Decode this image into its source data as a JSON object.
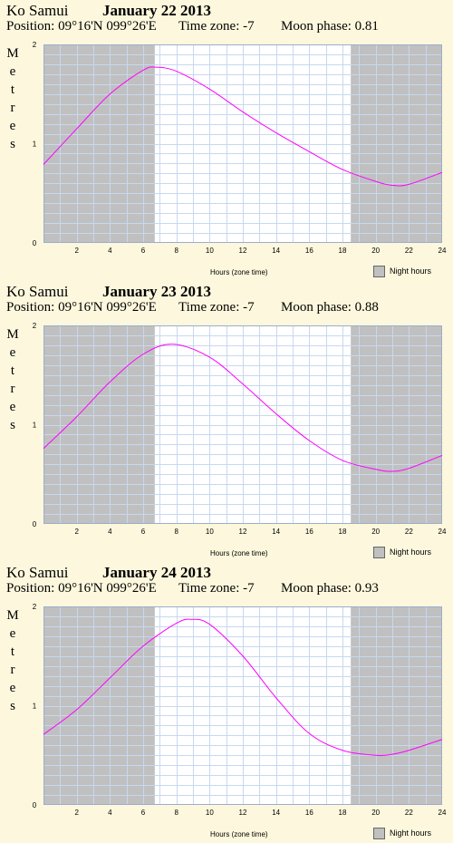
{
  "legend_label": "Night hours",
  "ylabel": "Metres",
  "xlabel": "Hours (zone time)",
  "charts": [
    {
      "location": "Ko Samui",
      "date": "January 22 2013",
      "position": "Position: 09°16'N 099°26'E",
      "timezone": "Time zone: -7",
      "moon": "Moon phase: 0.81"
    },
    {
      "location": "Ko Samui",
      "date": "January 23 2013",
      "position": "Position: 09°16'N 099°26'E",
      "timezone": "Time zone: -7",
      "moon": "Moon phase: 0.88"
    },
    {
      "location": "Ko Samui",
      "date": "January 24 2013",
      "position": "Position: 09°16'N 099°26'E",
      "timezone": "Time zone: -7",
      "moon": "Moon phase: 0.93"
    }
  ],
  "chart_data": [
    {
      "type": "line",
      "title": "January 22 2013",
      "xlabel": "Hours (zone time)",
      "ylabel": "Metres",
      "xlim": [
        0,
        24
      ],
      "ylim": [
        0,
        2
      ],
      "x_ticks": [
        2,
        4,
        6,
        8,
        10,
        12,
        14,
        16,
        18,
        20,
        22,
        24
      ],
      "y_ticks": [
        0,
        1,
        2
      ],
      "grid": true,
      "line_color": "#ff00ff",
      "night_color": "#c0c0c0",
      "night_hours": [
        [
          0,
          6.7
        ],
        [
          18.5,
          24
        ]
      ],
      "x": [
        0,
        2,
        4,
        6,
        6.8,
        8,
        10,
        12,
        14,
        16,
        18,
        20,
        21,
        22,
        24
      ],
      "y": [
        0.79,
        1.15,
        1.5,
        1.74,
        1.77,
        1.73,
        1.55,
        1.32,
        1.11,
        0.92,
        0.74,
        0.62,
        0.58,
        0.59,
        0.71
      ]
    },
    {
      "type": "line",
      "title": "January 23 2013",
      "xlabel": "Hours (zone time)",
      "ylabel": "Metres",
      "xlim": [
        0,
        24
      ],
      "ylim": [
        0,
        2
      ],
      "x_ticks": [
        2,
        4,
        6,
        8,
        10,
        12,
        14,
        16,
        18,
        20,
        22,
        24
      ],
      "y_ticks": [
        0,
        1,
        2
      ],
      "grid": true,
      "line_color": "#ff00ff",
      "night_color": "#c0c0c0",
      "night_hours": [
        [
          0,
          6.7
        ],
        [
          18.5,
          24
        ]
      ],
      "x": [
        0,
        2,
        4,
        6,
        7.8,
        10,
        12,
        14,
        16,
        18,
        20,
        21,
        22,
        24
      ],
      "y": [
        0.76,
        1.08,
        1.43,
        1.71,
        1.81,
        1.68,
        1.41,
        1.11,
        0.84,
        0.64,
        0.55,
        0.53,
        0.56,
        0.69
      ]
    },
    {
      "type": "line",
      "title": "January 24 2013",
      "xlabel": "Hours (zone time)",
      "ylabel": "Metres",
      "xlim": [
        0,
        24
      ],
      "ylim": [
        0,
        2
      ],
      "x_ticks": [
        2,
        4,
        6,
        8,
        10,
        12,
        14,
        16,
        18,
        20,
        22,
        24
      ],
      "y_ticks": [
        0,
        1,
        2
      ],
      "grid": true,
      "line_color": "#ff00ff",
      "night_color": "#c0c0c0",
      "night_hours": [
        [
          0,
          6.7
        ],
        [
          18.5,
          24
        ]
      ],
      "x": [
        0,
        2,
        4,
        6,
        8,
        8.9,
        10,
        12,
        14,
        16,
        18,
        20,
        21,
        22,
        24
      ],
      "y": [
        0.71,
        0.96,
        1.28,
        1.6,
        1.83,
        1.87,
        1.82,
        1.5,
        1.08,
        0.72,
        0.55,
        0.5,
        0.51,
        0.55,
        0.66
      ]
    }
  ]
}
